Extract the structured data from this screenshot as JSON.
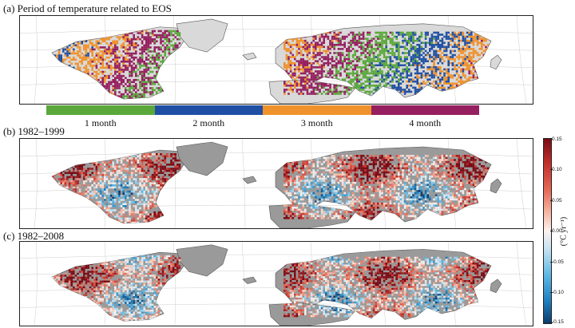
{
  "panels": [
    {
      "id": "a",
      "title": "(a) Period of temperature related to EOS",
      "mode": "category"
    },
    {
      "id": "b",
      "title": "(b) 1982–1999",
      "mode": "trend"
    },
    {
      "id": "c",
      "title": "(c) 1982–2008",
      "mode": "trend"
    }
  ],
  "categories": [
    {
      "label": "1 month",
      "color": "#5aa83c"
    },
    {
      "label": "2 month",
      "color": "#1f4fa3"
    },
    {
      "label": "3 month",
      "color": "#f0922c"
    },
    {
      "label": "4 month",
      "color": "#951f5f"
    }
  ],
  "colorbar": {
    "ticks": [
      "0.15",
      "0.10",
      "0.05",
      "0.00",
      "-0.05",
      "-0.10",
      "-0.15"
    ],
    "range": [
      -0.15,
      0.15
    ],
    "unit": "(°C yr⁻¹)"
  },
  "colors": {
    "land_light": "#d9d9d9",
    "land_dark": "#9a9a9a",
    "outline": "#555555",
    "grid": "#cccccc"
  }
}
